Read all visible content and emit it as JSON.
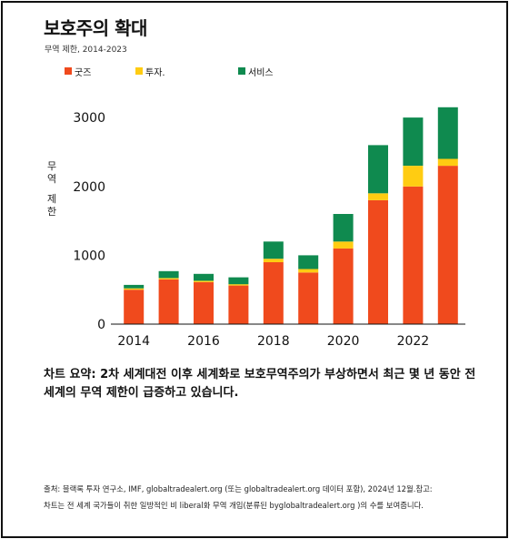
{
  "header": {
    "title": "보호주의 확대",
    "subtitle": "무역 제한, 2014-2023"
  },
  "colors": {
    "goods": "#f04a1d",
    "investment": "#ffcc12",
    "services": "#0f8a4f"
  },
  "chart_data": {
    "type": "bar",
    "stacked": true,
    "categories": [
      "2014",
      "2015",
      "2016",
      "2017",
      "2018",
      "2019",
      "2020",
      "2021",
      "2022",
      "2023"
    ],
    "series": [
      {
        "name": "굿즈",
        "key": "goods",
        "values": [
          500,
          650,
          610,
          560,
          900,
          750,
          1100,
          1800,
          2000,
          2300
        ]
      },
      {
        "name": "투자.",
        "key": "investment",
        "values": [
          20,
          20,
          20,
          20,
          50,
          50,
          100,
          100,
          300,
          100
        ]
      },
      {
        "name": "서비스",
        "key": "services",
        "values": [
          50,
          100,
          100,
          100,
          250,
          200,
          400,
          700,
          700,
          750
        ]
      }
    ],
    "ylabel": "무역 제한",
    "ylim": [
      0,
      3200
    ],
    "yticks": [
      0,
      1000,
      2000,
      3000
    ],
    "xticks": [
      "2014",
      "2016",
      "2018",
      "2020",
      "2022"
    ],
    "grid": false,
    "legend": "top-left"
  },
  "summary": "차트 요약: 2차 세계대전 이후 세계화로 보호무역주의가 부상하면서 최근 몇 년 동안 전 세계의 무역 제한이 급증하고 있습니다.",
  "footer": {
    "line1": "출처: 블랙록 투자 연구소, IMF, globaltradealert.org (또는 globaltradealert.org 데이터 포함), 2024년 12월.참고:",
    "line2": "차트는 전 세계 국가들이 취한 일방적인 비 liberal화 무역 개입(분류된 byglobaltradealert.org )의 수를 보여줍니다."
  }
}
